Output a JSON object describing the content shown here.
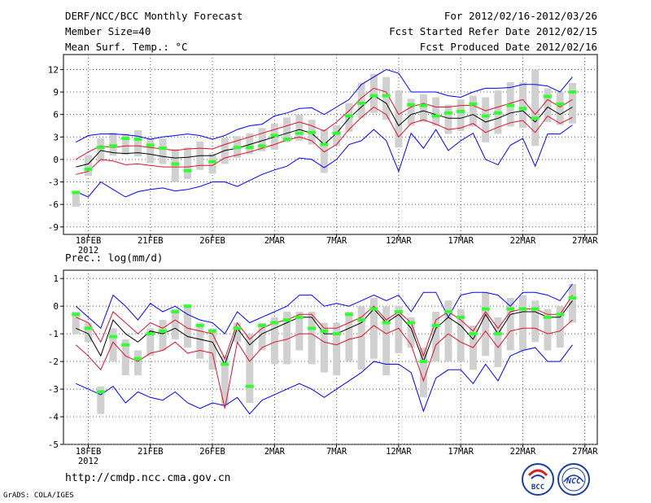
{
  "header": {
    "left": [
      "DERF/NCC/BCC Monthly Forecast",
      "Member Size=40",
      "Mean Surf. Temp.: °C"
    ],
    "right": [
      "For 2012/02/16-2012/03/26",
      "Fcst Started Refer Date 2012/02/15",
      "Fcst Produced Date 2012/02/16"
    ]
  },
  "footer": {
    "url": "http://cmdp.ncc.cma.gov.cn",
    "software": "GrADS: COLA/IGES"
  },
  "logos": {
    "bcc": "BCC",
    "ncc": "NCC"
  },
  "colors": {
    "envelope_outer": "#0000ff",
    "envelope_inner": "#e0102a",
    "mean": "#000000",
    "obs": "#33ff33",
    "box": "#d0d0d0"
  },
  "chart_data": [
    {
      "type": "line",
      "title": "Mean Surf. Temp.: °C",
      "ylabel": "°C",
      "ylim": [
        -10,
        14
      ],
      "yticks": [
        -9,
        -6,
        -3,
        0,
        3,
        6,
        9,
        12
      ],
      "xlim": [
        0,
        40
      ],
      "xticks": [
        {
          "pos": 1,
          "label": "18FEB",
          "sub": "2012"
        },
        {
          "pos": 6,
          "label": "21FEB"
        },
        {
          "pos": 11,
          "label": "26FEB"
        },
        {
          "pos": 16,
          "label": "2MAR"
        },
        {
          "pos": 21,
          "label": "7MAR"
        },
        {
          "pos": 26,
          "label": "12MAR"
        },
        {
          "pos": 31,
          "label": "17MAR"
        },
        {
          "pos": 36,
          "label": "22MAR"
        },
        {
          "pos": 41,
          "label": "27MAR"
        }
      ],
      "series": [
        {
          "name": "max",
          "color": "#0000ff",
          "values": [
            2.3,
            3.2,
            3.4,
            3.4,
            3.3,
            3.1,
            2.7,
            3.0,
            3.2,
            3.4,
            3.2,
            2.7,
            3.2,
            4.0,
            4.5,
            4.7,
            5.8,
            6.2,
            6.8,
            6.9,
            6.0,
            7.0,
            8.0,
            10.0,
            11.0,
            12.0,
            11.5,
            9.0,
            9.0,
            9.0,
            8.5,
            8.3,
            9.0,
            9.5,
            9.5,
            9.6,
            10.0,
            10.0,
            9.8,
            9.0,
            11.0
          ]
        },
        {
          "name": "upper",
          "color": "#e0102a",
          "values": [
            0.0,
            1.0,
            1.8,
            1.6,
            1.8,
            1.8,
            1.6,
            1.4,
            1.2,
            1.4,
            1.5,
            1.4,
            2.0,
            2.5,
            3.0,
            3.5,
            4.0,
            4.5,
            5.0,
            4.5,
            3.8,
            5.0,
            6.5,
            8.2,
            9.5,
            9.0,
            6.0,
            7.0,
            7.5,
            7.0,
            7.0,
            7.2,
            7.2,
            6.5,
            7.0,
            7.5,
            8.0,
            6.0,
            8.0,
            7.0,
            8.0
          ]
        },
        {
          "name": "mean",
          "color": "#000000",
          "values": [
            -1.0,
            -0.6,
            1.2,
            0.9,
            0.8,
            0.9,
            0.7,
            0.4,
            0.2,
            0.3,
            0.5,
            0.5,
            1.2,
            1.5,
            2.0,
            2.5,
            3.0,
            3.5,
            4.0,
            3.5,
            2.0,
            3.5,
            5.5,
            7.0,
            8.5,
            7.5,
            4.5,
            6.0,
            6.5,
            6.0,
            5.5,
            5.5,
            6.0,
            5.0,
            5.5,
            6.2,
            6.5,
            5.0,
            7.0,
            6.0,
            7.0
          ]
        },
        {
          "name": "lower",
          "color": "#e0102a",
          "values": [
            -2.0,
            -1.6,
            0.0,
            -0.2,
            -0.7,
            -0.6,
            -0.8,
            -1.0,
            -1.0,
            -1.0,
            -0.8,
            -0.8,
            0.2,
            0.6,
            1.0,
            1.5,
            2.0,
            2.6,
            3.0,
            2.5,
            1.0,
            2.0,
            4.0,
            5.6,
            7.0,
            6.0,
            3.0,
            4.8,
            5.3,
            4.7,
            4.0,
            4.2,
            4.8,
            3.6,
            4.3,
            4.9,
            5.2,
            3.6,
            5.8,
            4.8,
            5.6
          ]
        },
        {
          "name": "min",
          "color": "#0000ff",
          "values": [
            -4.3,
            -5.0,
            -3.0,
            -4.0,
            -5.0,
            -4.3,
            -4.0,
            -3.8,
            -4.2,
            -4.0,
            -3.6,
            -3.0,
            -3.0,
            -3.6,
            -2.8,
            -2.0,
            -1.4,
            -0.9,
            0.2,
            0.0,
            -1.1,
            0.0,
            2.0,
            2.5,
            4.0,
            2.5,
            -1.6,
            3.5,
            1.5,
            4.0,
            1.2,
            2.5,
            3.5,
            0.0,
            -0.7,
            1.9,
            2.8,
            -0.9,
            3.4,
            3.4,
            4.6
          ]
        },
        {
          "name": "obs",
          "color": "#33ff33",
          "values": [
            -4.4,
            -1.3,
            1.6,
            1.8,
            2.8,
            2.7,
            1.9,
            1.5,
            -0.6,
            -1.5,
            null,
            -0.3,
            null,
            1.6,
            1.6,
            1.8,
            3.2,
            2.7,
            3.5,
            3.6,
            2.0,
            3.5,
            5.8,
            7.5,
            8.5,
            8.5,
            null,
            7.3,
            7.2,
            5.8,
            6.2,
            6.4,
            7.4,
            5.8,
            6.2,
            7.2,
            6.8,
            5.5,
            8.4,
            7.4,
            9.0
          ]
        }
      ],
      "boxes": [
        [
          -6.3,
          -4.3
        ],
        [
          -2.2,
          0.6
        ],
        [
          -0.3,
          2.8
        ],
        [
          0.5,
          3.6
        ],
        [
          0.6,
          3.4
        ],
        [
          0.4,
          3.9
        ],
        [
          -0.5,
          2.9
        ],
        [
          -0.6,
          2.8
        ],
        [
          -3.0,
          1.4
        ],
        [
          -2.6,
          1.6
        ],
        [
          -1.4,
          2.4
        ],
        [
          -1.9,
          0.8
        ],
        [
          -0.6,
          2.9
        ],
        [
          0.2,
          3.1
        ],
        [
          0.7,
          3.5
        ],
        [
          1.1,
          4.2
        ],
        [
          1.3,
          4.8
        ],
        [
          2.3,
          5.6
        ],
        [
          2.5,
          6.0
        ],
        [
          2.0,
          5.3
        ],
        [
          -1.8,
          4.0
        ],
        [
          1.8,
          4.6
        ],
        [
          3.7,
          7.5
        ],
        [
          5.5,
          10.2
        ],
        [
          6.2,
          11.4
        ],
        [
          5.3,
          11.0
        ],
        [
          1.6,
          9.2
        ],
        [
          4.5,
          8.1
        ],
        [
          5.0,
          8.7
        ],
        [
          4.5,
          8.3
        ],
        [
          3.4,
          7.3
        ],
        [
          3.8,
          8.0
        ],
        [
          4.4,
          8.5
        ],
        [
          2.3,
          8.3
        ],
        [
          3.4,
          9.2
        ],
        [
          4.4,
          10.3
        ],
        [
          4.2,
          10.3
        ],
        [
          1.8,
          12.0
        ],
        [
          5.0,
          9.5
        ],
        [
          4.6,
          9.0
        ],
        [
          4.8,
          10.2
        ]
      ]
    },
    {
      "type": "line",
      "title": "Prec.: log(mm/d)",
      "ylabel": "log(mm/d)",
      "ylim": [
        -5,
        1.3
      ],
      "yticks": [
        -5,
        -4,
        -3,
        -2,
        -1,
        0,
        1
      ],
      "xlim": [
        0,
        40
      ],
      "xticks": [
        {
          "pos": 1,
          "label": "18FEB",
          "sub": "2012"
        },
        {
          "pos": 6,
          "label": "21FEB"
        },
        {
          "pos": 11,
          "label": "26FEB"
        },
        {
          "pos": 16,
          "label": "2MAR"
        },
        {
          "pos": 21,
          "label": "7MAR"
        },
        {
          "pos": 26,
          "label": "12MAR"
        },
        {
          "pos": 31,
          "label": "17MAR"
        },
        {
          "pos": 36,
          "label": "22MAR"
        },
        {
          "pos": 41,
          "label": "27MAR"
        }
      ],
      "series": [
        {
          "name": "max",
          "color": "#0000ff",
          "values": [
            0.0,
            -0.4,
            -0.8,
            0.4,
            0.0,
            -0.5,
            0.1,
            -0.2,
            0.0,
            -0.3,
            -0.5,
            -0.6,
            -1.0,
            -0.2,
            -0.6,
            -0.4,
            -0.2,
            0.0,
            0.4,
            0.4,
            0.0,
            0.1,
            0.0,
            0.2,
            0.4,
            0.2,
            0.4,
            -0.2,
            0.5,
            0.5,
            -0.4,
            0.4,
            0.5,
            0.5,
            0.4,
            0.0,
            0.5,
            0.5,
            0.4,
            0.2,
            0.8
          ]
        },
        {
          "name": "upper",
          "color": "#e0102a",
          "values": [
            -0.4,
            -0.6,
            -1.3,
            -0.2,
            -0.6,
            -1.0,
            -0.6,
            -0.8,
            -0.5,
            -0.8,
            -0.9,
            -1.0,
            -1.9,
            -0.6,
            -1.2,
            -0.8,
            -0.6,
            -0.5,
            -0.3,
            -0.3,
            -0.8,
            -0.8,
            -0.6,
            -0.4,
            0.0,
            -0.5,
            -0.2,
            -0.6,
            -1.8,
            -0.5,
            -0.2,
            -0.5,
            -0.9,
            -0.2,
            -0.8,
            -0.2,
            -0.1,
            -0.1,
            -0.3,
            -0.3,
            0.4
          ]
        },
        {
          "name": "mean",
          "color": "#000000",
          "values": [
            -0.8,
            -1.0,
            -1.8,
            -0.5,
            -1.0,
            -1.3,
            -0.9,
            -1.0,
            -0.8,
            -1.1,
            -1.2,
            -1.3,
            -2.1,
            -0.8,
            -1.4,
            -1.0,
            -0.8,
            -0.6,
            -0.4,
            -0.4,
            -1.0,
            -1.0,
            -0.8,
            -0.6,
            -0.1,
            -0.6,
            -0.3,
            -0.8,
            -2.0,
            -0.8,
            -0.4,
            -0.7,
            -1.2,
            -0.3,
            -1.0,
            -0.3,
            -0.2,
            -0.2,
            -0.4,
            -0.4,
            0.2
          ]
        },
        {
          "name": "lower",
          "color": "#e0102a",
          "values": [
            -1.4,
            -1.8,
            -2.3,
            -1.3,
            -1.8,
            -2.0,
            -1.7,
            -1.6,
            -1.3,
            -1.7,
            -1.6,
            -1.7,
            -3.7,
            -1.3,
            -2.0,
            -1.5,
            -1.3,
            -1.2,
            -1.0,
            -1.0,
            -1.3,
            -1.4,
            -1.2,
            -1.1,
            -0.7,
            -1.0,
            -0.8,
            -1.4,
            -2.7,
            -1.4,
            -1.0,
            -1.3,
            -1.5,
            -0.9,
            -1.5,
            -0.9,
            -0.8,
            -0.8,
            -1.0,
            -0.9,
            -0.5
          ]
        },
        {
          "name": "min",
          "color": "#0000ff",
          "values": [
            -2.8,
            -3.0,
            -3.2,
            -2.9,
            -3.5,
            -3.1,
            -3.3,
            -3.4,
            -3.1,
            -3.5,
            -3.7,
            -3.5,
            -3.6,
            -3.3,
            -3.9,
            -3.4,
            -3.2,
            -3.0,
            -2.8,
            -3.0,
            -3.3,
            -3.0,
            -2.7,
            -2.4,
            -2.0,
            -2.1,
            -2.1,
            -2.4,
            -3.8,
            -2.6,
            -2.3,
            -2.3,
            -2.8,
            -2.1,
            -2.7,
            -1.8,
            -1.6,
            -1.5,
            -2.0,
            -2.0,
            -1.4
          ]
        },
        {
          "name": "obs",
          "color": "#33ff33",
          "values": [
            -0.3,
            -0.8,
            -3.1,
            -1.1,
            -1.4,
            -1.9,
            -1.0,
            -0.9,
            -0.2,
            0.0,
            -0.7,
            -0.9,
            -2.1,
            -0.8,
            -2.9,
            -0.7,
            -0.6,
            -0.5,
            -0.4,
            -0.8,
            -0.9,
            -1.0,
            -0.3,
            -0.5,
            -0.1,
            -0.6,
            -0.2,
            -0.6,
            -2.0,
            -0.7,
            -0.2,
            -0.4,
            -1.0,
            -0.1,
            -1.0,
            -0.1,
            -0.1,
            -0.1,
            -0.4,
            -0.3,
            0.3
          ]
        }
      ],
      "boxes": [
        [
          -1.0,
          -0.2
        ],
        [
          -1.3,
          -0.6
        ],
        [
          -3.9,
          -2.9
        ],
        [
          -2.0,
          -0.8
        ],
        [
          -2.5,
          -1.2
        ],
        [
          -2.5,
          -1.6
        ],
        [
          -1.8,
          -0.8
        ],
        [
          -1.6,
          -0.5
        ],
        [
          -1.2,
          -0.1
        ],
        [
          -1.5,
          0.0
        ],
        [
          -1.9,
          -0.6
        ],
        [
          -2.3,
          -0.8
        ],
        [
          -3.6,
          -1.8
        ],
        [
          -1.3,
          -0.6
        ],
        [
          -3.5,
          -1.0
        ],
        [
          -1.6,
          -0.6
        ],
        [
          -2.1,
          -0.4
        ],
        [
          -2.1,
          -0.2
        ],
        [
          -1.6,
          -0.2
        ],
        [
          -2.1,
          -0.2
        ],
        [
          -2.4,
          -0.6
        ],
        [
          -2.5,
          -0.6
        ],
        [
          -2.0,
          -0.2
        ],
        [
          -2.3,
          0.0
        ],
        [
          -1.9,
          0.3
        ],
        [
          -2.5,
          0.0
        ],
        [
          -1.7,
          0.0
        ],
        [
          -1.5,
          -0.4
        ],
        [
          -3.3,
          -1.5
        ],
        [
          -2.0,
          -0.2
        ],
        [
          -2.0,
          0.2
        ],
        [
          -2.0,
          -0.1
        ],
        [
          -2.3,
          -0.7
        ],
        [
          -1.8,
          0.5
        ],
        [
          -2.2,
          -0.4
        ],
        [
          -1.6,
          0.3
        ],
        [
          -1.6,
          0.4
        ],
        [
          -1.3,
          0.2
        ],
        [
          -1.6,
          -0.1
        ],
        [
          -1.5,
          0.0
        ],
        [
          -0.6,
          0.8
        ]
      ]
    }
  ]
}
